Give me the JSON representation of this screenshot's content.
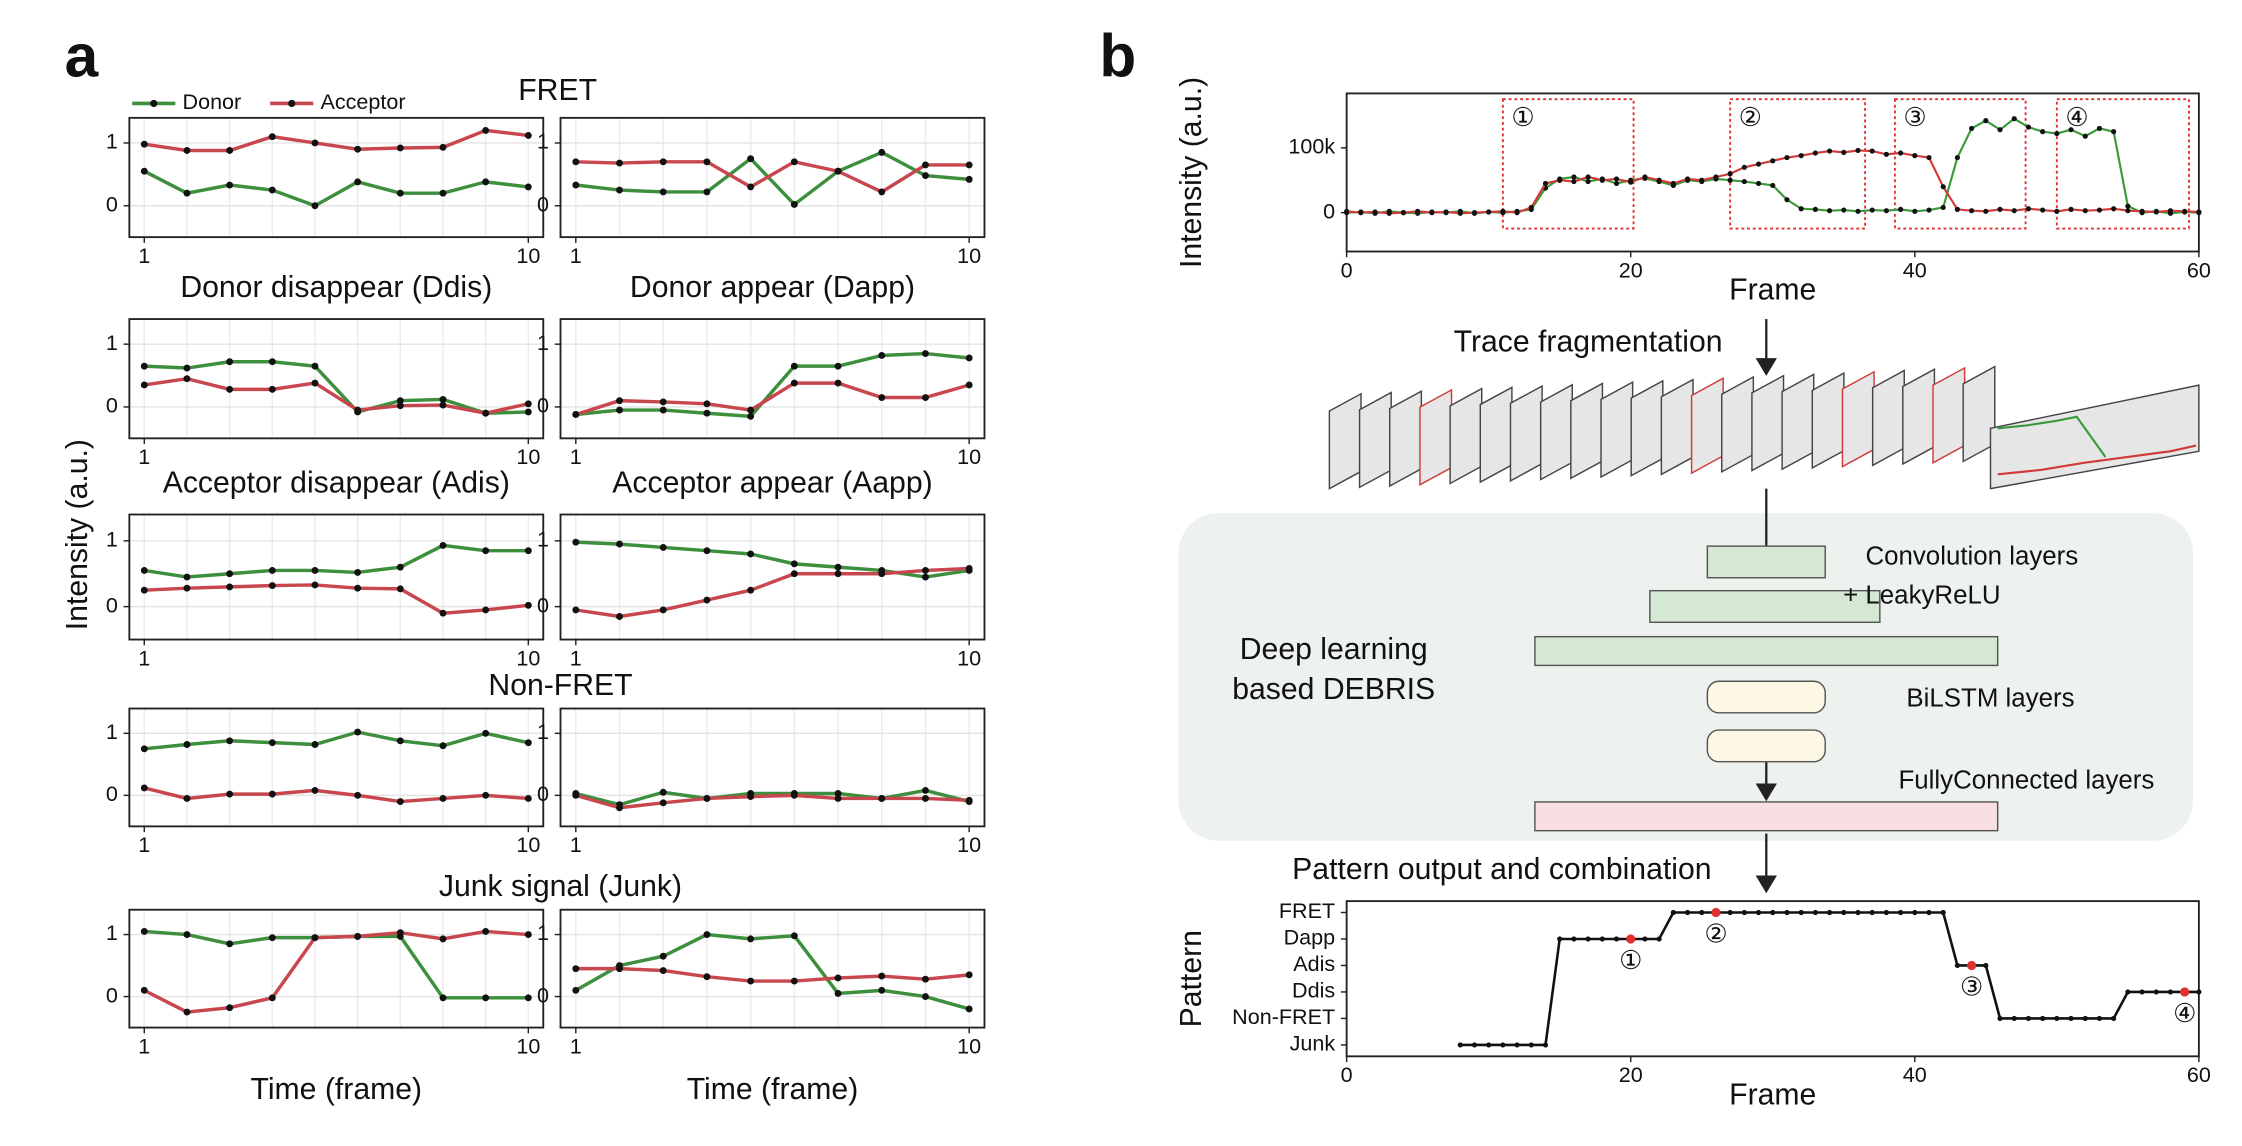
{
  "panel_labels": [
    "a",
    "b"
  ],
  "panel_a": {
    "group_titles": [
      "FRET",
      "Non-FRET",
      "Junk signal (Junk)"
    ],
    "ylabel": "Intensity (a.u.)",
    "legend": [
      {
        "name": "Donor",
        "color": "#3d8f3d"
      },
      {
        "name": "Acceptor",
        "color": "#c8474f"
      }
    ]
  },
  "chart_data": [
    {
      "type": "line",
      "x": [
        1,
        2,
        3,
        4,
        5,
        6,
        7,
        8,
        9,
        10
      ],
      "xlim": [
        0.65,
        10.35
      ],
      "ylim": [
        -0.5,
        1.4
      ],
      "xticks": [
        1,
        10
      ],
      "yticks": [
        0,
        1
      ],
      "grid": true,
      "series": [
        {
          "color": "#3d8f3d",
          "values": [
            0.55,
            0.2,
            0.33,
            0.25,
            0.0,
            0.38,
            0.2,
            0.2,
            0.38,
            0.3
          ]
        },
        {
          "color": "#c8474f",
          "values": [
            0.98,
            0.88,
            0.88,
            1.1,
            1.0,
            0.9,
            0.92,
            0.93,
            1.2,
            1.12
          ]
        }
      ]
    },
    {
      "type": "line",
      "x": [
        1,
        2,
        3,
        4,
        5,
        6,
        7,
        8,
        9,
        10
      ],
      "xlim": [
        0.65,
        10.35
      ],
      "ylim": [
        -0.5,
        1.4
      ],
      "xticks": [
        1,
        10
      ],
      "yticks": [
        0,
        1
      ],
      "grid": true,
      "series": [
        {
          "color": "#3d8f3d",
          "values": [
            0.33,
            0.25,
            0.22,
            0.22,
            0.75,
            0.02,
            0.55,
            0.85,
            0.48,
            0.42
          ]
        },
        {
          "color": "#c8474f",
          "values": [
            0.7,
            0.68,
            0.7,
            0.7,
            0.3,
            0.7,
            0.55,
            0.22,
            0.65,
            0.65
          ]
        }
      ]
    },
    {
      "type": "line",
      "title": "Donor disappear (Ddis)",
      "x": [
        1,
        2,
        3,
        4,
        5,
        6,
        7,
        8,
        9,
        10
      ],
      "xlim": [
        0.65,
        10.35
      ],
      "ylim": [
        -0.5,
        1.4
      ],
      "xticks": [
        1,
        10
      ],
      "yticks": [
        0,
        1
      ],
      "grid": true,
      "series": [
        {
          "color": "#3d8f3d",
          "values": [
            0.65,
            0.62,
            0.72,
            0.72,
            0.65,
            -0.08,
            0.1,
            0.12,
            -0.1,
            -0.08
          ]
        },
        {
          "color": "#c8474f",
          "values": [
            0.35,
            0.45,
            0.28,
            0.28,
            0.38,
            -0.05,
            0.02,
            0.03,
            -0.1,
            0.05
          ]
        }
      ]
    },
    {
      "type": "line",
      "title": "Donor appear (Dapp)",
      "x": [
        1,
        2,
        3,
        4,
        5,
        6,
        7,
        8,
        9,
        10
      ],
      "xlim": [
        0.65,
        10.35
      ],
      "ylim": [
        -0.5,
        1.4
      ],
      "xticks": [
        1,
        10
      ],
      "yticks": [
        0,
        1
      ],
      "grid": true,
      "series": [
        {
          "color": "#3d8f3d",
          "values": [
            -0.12,
            -0.05,
            -0.05,
            -0.1,
            -0.15,
            0.65,
            0.65,
            0.82,
            0.85,
            0.78
          ]
        },
        {
          "color": "#c8474f",
          "values": [
            -0.12,
            0.1,
            0.08,
            0.05,
            -0.05,
            0.38,
            0.38,
            0.15,
            0.15,
            0.35
          ]
        }
      ]
    },
    {
      "type": "line",
      "title": "Acceptor disappear (Adis)",
      "x": [
        1,
        2,
        3,
        4,
        5,
        6,
        7,
        8,
        9,
        10
      ],
      "xlim": [
        0.65,
        10.35
      ],
      "ylim": [
        -0.5,
        1.4
      ],
      "xticks": [
        1,
        10
      ],
      "yticks": [
        0,
        1
      ],
      "grid": true,
      "series": [
        {
          "color": "#3d8f3d",
          "values": [
            0.55,
            0.45,
            0.5,
            0.55,
            0.55,
            0.52,
            0.6,
            0.93,
            0.85,
            0.85
          ]
        },
        {
          "color": "#c8474f",
          "values": [
            0.25,
            0.28,
            0.3,
            0.32,
            0.33,
            0.28,
            0.27,
            -0.1,
            -0.05,
            0.02
          ]
        }
      ]
    },
    {
      "type": "line",
      "title": "Acceptor appear (Aapp)",
      "x": [
        1,
        2,
        3,
        4,
        5,
        6,
        7,
        8,
        9,
        10
      ],
      "xlim": [
        0.65,
        10.35
      ],
      "ylim": [
        -0.5,
        1.4
      ],
      "xticks": [
        1,
        10
      ],
      "yticks": [
        0,
        1
      ],
      "grid": true,
      "series": [
        {
          "color": "#3d8f3d",
          "values": [
            0.98,
            0.95,
            0.9,
            0.85,
            0.8,
            0.65,
            0.6,
            0.55,
            0.45,
            0.55
          ]
        },
        {
          "color": "#c8474f",
          "values": [
            -0.05,
            -0.15,
            -0.05,
            0.1,
            0.25,
            0.5,
            0.5,
            0.5,
            0.55,
            0.58
          ]
        }
      ]
    },
    {
      "type": "line",
      "x": [
        1,
        2,
        3,
        4,
        5,
        6,
        7,
        8,
        9,
        10
      ],
      "xlim": [
        0.65,
        10.35
      ],
      "ylim": [
        -0.5,
        1.4
      ],
      "xticks": [
        1,
        10
      ],
      "yticks": [
        0,
        1
      ],
      "grid": true,
      "series": [
        {
          "color": "#3d8f3d",
          "values": [
            0.75,
            0.82,
            0.88,
            0.85,
            0.82,
            1.02,
            0.88,
            0.8,
            1.0,
            0.85
          ]
        },
        {
          "color": "#c8474f",
          "values": [
            0.12,
            -0.05,
            0.02,
            0.02,
            0.08,
            0.0,
            -0.1,
            -0.05,
            0.0,
            -0.05
          ]
        }
      ]
    },
    {
      "type": "line",
      "x": [
        1,
        2,
        3,
        4,
        5,
        6,
        7,
        8,
        9,
        10
      ],
      "xlim": [
        0.65,
        10.35
      ],
      "ylim": [
        -0.5,
        1.4
      ],
      "xticks": [
        1,
        10
      ],
      "yticks": [
        0,
        1
      ],
      "grid": true,
      "series": [
        {
          "color": "#3d8f3d",
          "values": [
            0.03,
            -0.15,
            0.05,
            -0.05,
            0.03,
            0.03,
            0.03,
            -0.05,
            0.08,
            -0.1
          ]
        },
        {
          "color": "#c8474f",
          "values": [
            0.0,
            -0.2,
            -0.12,
            -0.05,
            -0.02,
            0.0,
            -0.05,
            -0.05,
            -0.05,
            -0.08
          ]
        }
      ]
    },
    {
      "type": "line",
      "xlabel": "Time (frame)",
      "x": [
        1,
        2,
        3,
        4,
        5,
        6,
        7,
        8,
        9,
        10
      ],
      "xlim": [
        0.65,
        10.35
      ],
      "ylim": [
        -0.5,
        1.4
      ],
      "xticks": [
        1,
        10
      ],
      "yticks": [
        0,
        1
      ],
      "grid": true,
      "series": [
        {
          "color": "#3d8f3d",
          "values": [
            1.05,
            1.0,
            0.85,
            0.95,
            0.95,
            0.97,
            0.97,
            -0.02,
            -0.02,
            -0.02
          ]
        },
        {
          "color": "#c8474f",
          "values": [
            0.1,
            -0.25,
            -0.18,
            -0.02,
            0.95,
            0.97,
            1.03,
            0.93,
            1.05,
            1.0
          ]
        }
      ]
    },
    {
      "type": "line",
      "xlabel": "Time (frame)",
      "x": [
        1,
        2,
        3,
        4,
        5,
        6,
        7,
        8,
        9,
        10
      ],
      "xlim": [
        0.65,
        10.35
      ],
      "ylim": [
        -0.5,
        1.4
      ],
      "xticks": [
        1,
        10
      ],
      "yticks": [
        0,
        1
      ],
      "grid": true,
      "series": [
        {
          "color": "#3d8f3d",
          "values": [
            0.1,
            0.5,
            0.65,
            1.0,
            0.93,
            0.98,
            0.05,
            0.1,
            0.0,
            -0.2
          ]
        },
        {
          "color": "#c8474f",
          "values": [
            0.45,
            0.45,
            0.42,
            0.32,
            0.25,
            0.25,
            0.3,
            0.33,
            0.28,
            0.35
          ]
        }
      ]
    },
    {
      "type": "line",
      "xlabel": "Frame",
      "ylabel": "Intensity (a.u.)",
      "x": [
        0,
        1,
        2,
        3,
        4,
        5,
        6,
        7,
        8,
        9,
        10,
        11,
        12,
        13,
        14,
        15,
        16,
        17,
        18,
        19,
        20,
        21,
        22,
        23,
        24,
        25,
        26,
        27,
        28,
        29,
        30,
        31,
        32,
        33,
        34,
        35,
        36,
        37,
        38,
        39,
        40,
        41,
        42,
        43,
        44,
        45,
        46,
        47,
        48,
        49,
        50,
        51,
        52,
        53,
        54,
        55,
        56,
        57,
        58,
        59,
        60
      ],
      "xlim": [
        0,
        60
      ],
      "ylim": [
        -60000,
        184000
      ],
      "xticks": [
        0,
        20,
        40,
        60
      ],
      "yticks": [
        0,
        {
          "value": 100000,
          "label": "100k"
        }
      ],
      "grid": false,
      "series": [
        {
          "color": "#3a9a3a",
          "values": [
            0,
            1000,
            -1000,
            2000,
            0,
            -1000,
            1000,
            0,
            2000,
            -1000,
            1000,
            0,
            2000,
            5000,
            38000,
            52000,
            55000,
            48000,
            52000,
            45000,
            50000,
            53000,
            48000,
            42000,
            50000,
            48000,
            52000,
            50000,
            48000,
            45000,
            42000,
            20000,
            6000,
            5000,
            3000,
            4000,
            2000,
            4000,
            3000,
            5000,
            2000,
            4000,
            8000,
            85000,
            130000,
            142000,
            128000,
            145000,
            132000,
            125000,
            122000,
            128000,
            118000,
            130000,
            125000,
            10000,
            0,
            2000,
            -1000,
            1000,
            0
          ]
        },
        {
          "color": "#d23a3a",
          "values": [
            2000,
            0,
            1000,
            -1000,
            0,
            2000,
            0,
            1000,
            -1000,
            0,
            1000,
            2000,
            0,
            8000,
            45000,
            50000,
            48000,
            55000,
            50000,
            52000,
            47000,
            55000,
            50000,
            45000,
            52000,
            50000,
            55000,
            60000,
            70000,
            75000,
            80000,
            85000,
            88000,
            92000,
            95000,
            93000,
            96000,
            95000,
            90000,
            92000,
            88000,
            85000,
            40000,
            5000,
            3000,
            2000,
            5000,
            3000,
            6000,
            4000,
            2000,
            5000,
            3000,
            4000,
            6000,
            3000,
            2000,
            1000,
            3000,
            2000,
            1000
          ]
        }
      ],
      "regions": [
        {
          "label": "①",
          "xrange": [
            11,
            20.2
          ]
        },
        {
          "label": "②",
          "xrange": [
            27,
            36.5
          ]
        },
        {
          "label": "③",
          "xrange": [
            38.6,
            47.8
          ]
        },
        {
          "label": "④",
          "xrange": [
            50,
            59.3
          ]
        }
      ]
    },
    {
      "type": "step",
      "xlabel": "Frame",
      "ylabel": "Pattern",
      "x": [
        8,
        9,
        10,
        11,
        12,
        13,
        14,
        15,
        16,
        17,
        18,
        19,
        20,
        21,
        22,
        23,
        24,
        25,
        26,
        27,
        28,
        29,
        30,
        31,
        32,
        33,
        34,
        35,
        36,
        37,
        38,
        39,
        40,
        41,
        42,
        43,
        44,
        45,
        46,
        47,
        48,
        49,
        50,
        51,
        52,
        53,
        54,
        55,
        56,
        57,
        58,
        59,
        60
      ],
      "xlim": [
        0,
        60
      ],
      "ylim": [
        -0.43,
        5.43
      ],
      "xticks": [
        0,
        20,
        40,
        60
      ],
      "yticks": [
        {
          "value": 0,
          "label": "Junk"
        },
        {
          "value": 1,
          "label": "Non-FRET"
        },
        {
          "value": 2,
          "label": "Ddis"
        },
        {
          "value": 3,
          "label": "Adis"
        },
        {
          "value": 4,
          "label": "Dapp"
        },
        {
          "value": 5,
          "label": "FRET"
        }
      ],
      "grid": false,
      "series": [
        {
          "color": "#111111",
          "values": [
            0,
            0,
            0,
            0,
            0,
            0,
            0,
            4,
            4,
            4,
            4,
            4,
            4,
            4,
            4,
            5,
            5,
            5,
            5,
            5,
            5,
            5,
            5,
            5,
            5,
            5,
            5,
            5,
            5,
            5,
            5,
            5,
            5,
            5,
            5,
            3,
            3,
            3,
            1,
            1,
            1,
            1,
            1,
            1,
            1,
            1,
            1,
            2,
            2,
            2,
            2,
            2,
            2
          ]
        }
      ],
      "markers": {
        "color": "#e03030",
        "points": [
          {
            "x": 20,
            "label": "①"
          },
          {
            "x": 26,
            "label": "②"
          },
          {
            "x": 44,
            "label": "③"
          },
          {
            "x": 59,
            "label": "④"
          }
        ]
      }
    }
  ],
  "diagram": {
    "steps": [
      "Trace fragmentation",
      "Pattern output and combination"
    ],
    "model_name": [
      "Deep learning",
      "based DEBRIS"
    ],
    "layers": [
      "Convolution layers",
      "+ LeakyReLU",
      "BiLSTM layers",
      "FullyConnected layers"
    ]
  }
}
